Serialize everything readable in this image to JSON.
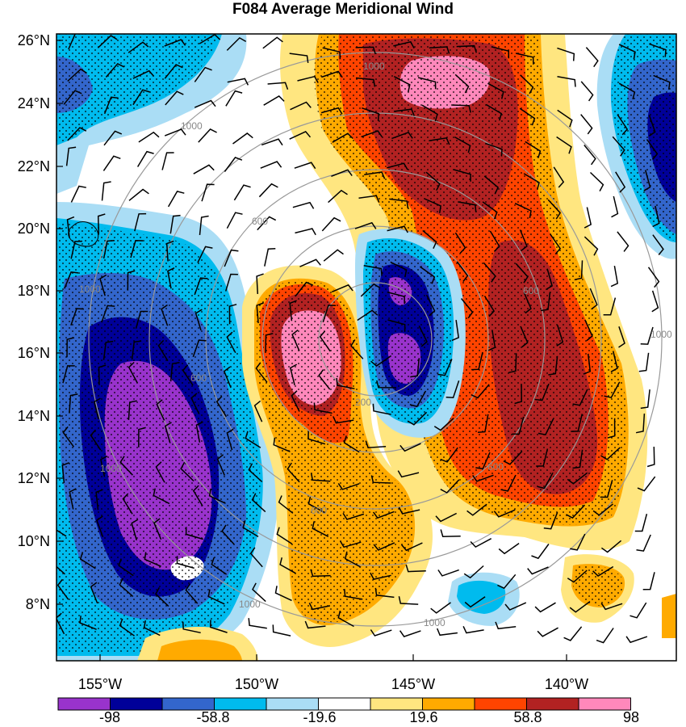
{
  "title": "F084 Average Meridional Wind",
  "y_axis": {
    "ticks": [
      "26°N",
      "24°N",
      "22°N",
      "20°N",
      "18°N",
      "16°N",
      "14°N",
      "12°N",
      "10°N",
      "8°N"
    ]
  },
  "x_axis": {
    "ticks": [
      "155°W",
      "150°W",
      "145°W",
      "140°W"
    ]
  },
  "colorbar": {
    "colors": [
      "#9933cc",
      "#000099",
      "#3366cc",
      "#00bbee",
      "#aaddf5",
      "#ffffff",
      "#ffe680",
      "#ffaa00",
      "#ff4400",
      "#b22222",
      "#ff88bb"
    ],
    "labels": [
      "-98",
      "-58.8",
      "-19.6",
      "19.6",
      "58.8",
      "98"
    ]
  },
  "contour_labels": [
    "1000",
    "1000",
    "600",
    "1000",
    "600",
    "200",
    "600",
    "1000",
    "600",
    "1000",
    "600",
    "1000",
    "1000"
  ],
  "features": {
    "stippling": "significance dots over shaded regions",
    "wind_barbs": "black barbs across domain",
    "coastline": "Hawaiian Islands outline, upper left"
  }
}
